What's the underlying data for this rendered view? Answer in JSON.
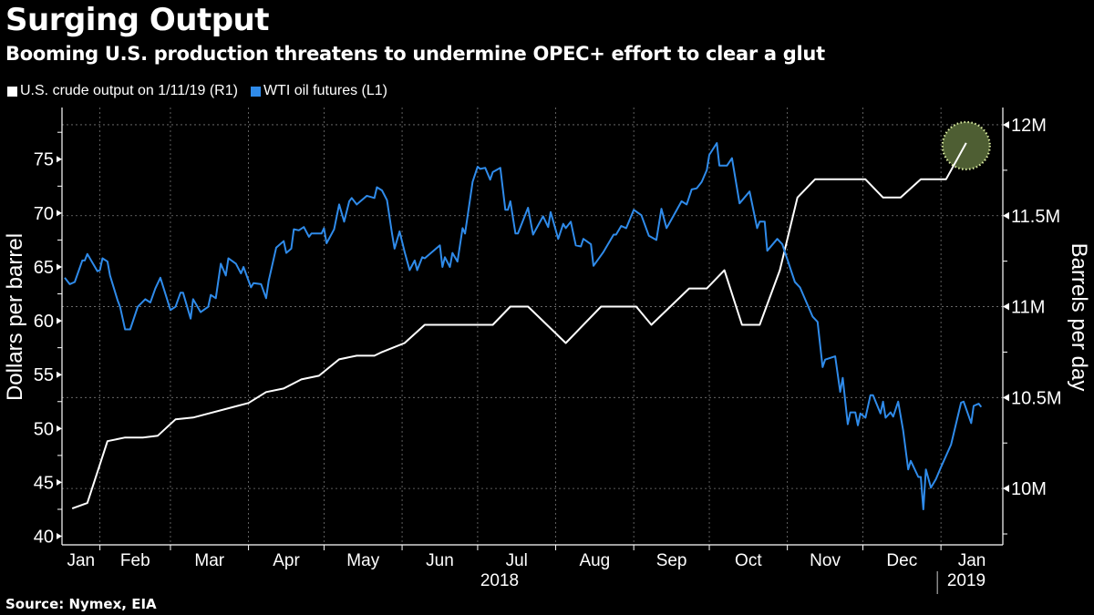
{
  "header": {
    "title": "Surging Output",
    "subtitle": "Booming U.S. production threatens to undermine OPEC+ effort to clear a glut"
  },
  "footer": {
    "source": "Source: Nymex, EIA"
  },
  "colors": {
    "background": "#000000",
    "wti": "#2f8bea",
    "output": "#ffffff",
    "highlight_fill": "#4e5e33",
    "highlight_border": "#d9eaa0",
    "grid": "#777777"
  },
  "chart_data": {
    "type": "line",
    "title": "Surging Output",
    "subtitle": "Booming U.S. production threatens to undermine OPEC+ effort to clear a glut",
    "legend_placement": "top-left",
    "grid": true,
    "x_axis": {
      "type": "date",
      "range": [
        "2018-01-01",
        "2019-01-24"
      ],
      "tick_labels": [
        {
          "date": "2018-01-01",
          "label": "Jan"
        },
        {
          "date": "2018-02-01",
          "label": "Feb"
        },
        {
          "date": "2018-03-01",
          "label": "Mar"
        },
        {
          "date": "2018-04-01",
          "label": "Apr"
        },
        {
          "date": "2018-05-01",
          "label": "May"
        },
        {
          "date": "2018-06-01",
          "label": "Jun"
        },
        {
          "date": "2018-07-01",
          "label": "Jul"
        },
        {
          "date": "2018-08-01",
          "label": "Aug"
        },
        {
          "date": "2018-09-01",
          "label": "Sep"
        },
        {
          "date": "2018-10-01",
          "label": "Oct"
        },
        {
          "date": "2018-11-01",
          "label": "Nov"
        },
        {
          "date": "2018-12-01",
          "label": "Dec"
        },
        {
          "date": "2019-01-01",
          "label": "Jan"
        }
      ],
      "year_labels": [
        {
          "date": "2018-07-01",
          "label": "2018"
        },
        {
          "date": "2019-01-01",
          "label": "2019"
        }
      ]
    },
    "y_left": {
      "label": "Dollars per barrel",
      "range": [
        39.2,
        79.8
      ],
      "ticks": [
        40,
        45,
        50,
        55,
        60,
        65,
        70,
        75
      ],
      "tick_labels": [
        "40",
        "45",
        "50",
        "55",
        "60",
        "65",
        "70",
        "75"
      ]
    },
    "y_right": {
      "label": "Barrels per day",
      "range": [
        9.69,
        12.095
      ],
      "unit": "million",
      "ticks": [
        10,
        10.5,
        11,
        11.5,
        12
      ],
      "tick_labels": [
        "10M",
        "10.5M",
        "11M",
        "11.5M",
        "12M"
      ]
    },
    "series": [
      {
        "name": "U.S. crude output on 1/11/19 (R1)",
        "axis": "right",
        "color": "#ffffff",
        "highlight_last_point": true,
        "points": [
          [
            "2018-01-21",
            9.89
          ],
          [
            "2018-01-27",
            9.92
          ],
          [
            "2018-02-04",
            10.26
          ],
          [
            "2018-02-11",
            10.28
          ],
          [
            "2018-02-18",
            10.28
          ],
          [
            "2018-02-24",
            10.29
          ],
          [
            "2018-03-03",
            10.38
          ],
          [
            "2018-03-10",
            10.39
          ],
          [
            "2018-04-01",
            10.47
          ],
          [
            "2018-04-08",
            10.53
          ],
          [
            "2018-04-15",
            10.55
          ],
          [
            "2018-04-22",
            10.6
          ],
          [
            "2018-04-29",
            10.62
          ],
          [
            "2018-05-07",
            10.71
          ],
          [
            "2018-05-14",
            10.73
          ],
          [
            "2018-05-21",
            10.73
          ],
          [
            "2018-05-24",
            10.75
          ],
          [
            "2018-06-02",
            10.8
          ],
          [
            "2018-06-10",
            10.9
          ],
          [
            "2018-07-07",
            10.9
          ],
          [
            "2018-07-14",
            11.0
          ],
          [
            "2018-07-21",
            11.0
          ],
          [
            "2018-08-05",
            10.8
          ],
          [
            "2018-08-19",
            11.0
          ],
          [
            "2018-09-02",
            11.0
          ],
          [
            "2018-09-08",
            10.9
          ],
          [
            "2018-09-23",
            11.1
          ],
          [
            "2018-09-30",
            11.1
          ],
          [
            "2018-10-07",
            11.2
          ],
          [
            "2018-10-14",
            10.9
          ],
          [
            "2018-10-21",
            10.9
          ],
          [
            "2018-10-29",
            11.2
          ],
          [
            "2018-11-05",
            11.6
          ],
          [
            "2018-11-12",
            11.7
          ],
          [
            "2018-12-02",
            11.7
          ],
          [
            "2018-12-09",
            11.6
          ],
          [
            "2018-12-16",
            11.6
          ],
          [
            "2018-12-24",
            11.7
          ],
          [
            "2019-01-03",
            11.7
          ],
          [
            "2019-01-11",
            11.9
          ]
        ]
      },
      {
        "name": "WTI oil futures (L1)",
        "axis": "left",
        "color": "#2f8bea",
        "points": [
          [
            "2018-01-18",
            64.0
          ],
          [
            "2018-01-20",
            63.4
          ],
          [
            "2018-01-22",
            63.6
          ],
          [
            "2018-01-25",
            65.6
          ],
          [
            "2018-01-26",
            65.6
          ],
          [
            "2018-01-27",
            66.2
          ],
          [
            "2018-01-31",
            64.6
          ],
          [
            "2018-02-01",
            64.7
          ],
          [
            "2018-02-02",
            65.8
          ],
          [
            "2018-02-04",
            65.5
          ],
          [
            "2018-02-05",
            64.2
          ],
          [
            "2018-02-08",
            61.9
          ],
          [
            "2018-02-09",
            61.3
          ],
          [
            "2018-02-11",
            59.2
          ],
          [
            "2018-02-13",
            59.2
          ],
          [
            "2018-02-16",
            61.3
          ],
          [
            "2018-02-19",
            62.0
          ],
          [
            "2018-02-21",
            61.7
          ],
          [
            "2018-02-23",
            63.0
          ],
          [
            "2018-02-25",
            64.0
          ],
          [
            "2018-03-01",
            61.0
          ],
          [
            "2018-03-03",
            61.3
          ],
          [
            "2018-03-05",
            62.6
          ],
          [
            "2018-03-06",
            62.6
          ],
          [
            "2018-03-09",
            60.2
          ],
          [
            "2018-03-10",
            62.0
          ],
          [
            "2018-03-13",
            60.8
          ],
          [
            "2018-03-16",
            61.3
          ],
          [
            "2018-03-17",
            62.4
          ],
          [
            "2018-03-19",
            62.1
          ],
          [
            "2018-03-21",
            65.3
          ],
          [
            "2018-03-23",
            64.2
          ],
          [
            "2018-03-24",
            65.8
          ],
          [
            "2018-03-27",
            65.3
          ],
          [
            "2018-03-29",
            64.4
          ],
          [
            "2018-03-30",
            65.0
          ],
          [
            "2018-04-02",
            63.1
          ],
          [
            "2018-04-03",
            63.5
          ],
          [
            "2018-04-06",
            63.4
          ],
          [
            "2018-04-08",
            62.1
          ],
          [
            "2018-04-09",
            63.7
          ],
          [
            "2018-04-12",
            66.8
          ],
          [
            "2018-04-15",
            67.4
          ],
          [
            "2018-04-16",
            66.3
          ],
          [
            "2018-04-18",
            66.7
          ],
          [
            "2018-04-19",
            68.5
          ],
          [
            "2018-04-21",
            68.4
          ],
          [
            "2018-04-23",
            68.7
          ],
          [
            "2018-04-25",
            67.8
          ],
          [
            "2018-04-26",
            68.1
          ],
          [
            "2018-04-30",
            68.1
          ],
          [
            "2018-05-01",
            68.6
          ],
          [
            "2018-05-02",
            67.2
          ],
          [
            "2018-05-05",
            68.5
          ],
          [
            "2018-05-07",
            70.8
          ],
          [
            "2018-05-09",
            69.2
          ],
          [
            "2018-05-11",
            71.1
          ],
          [
            "2018-05-12",
            71.4
          ],
          [
            "2018-05-14",
            70.8
          ],
          [
            "2018-05-18",
            71.6
          ],
          [
            "2018-05-21",
            71.4
          ],
          [
            "2018-05-22",
            72.4
          ],
          [
            "2018-05-24",
            72.1
          ],
          [
            "2018-05-26",
            71.2
          ],
          [
            "2018-05-28",
            68.1
          ],
          [
            "2018-05-29",
            66.7
          ],
          [
            "2018-05-31",
            68.3
          ],
          [
            "2018-06-02",
            66.4
          ],
          [
            "2018-06-04",
            64.7
          ],
          [
            "2018-06-06",
            65.6
          ],
          [
            "2018-06-07",
            64.7
          ],
          [
            "2018-06-09",
            65.9
          ],
          [
            "2018-06-10",
            65.8
          ],
          [
            "2018-06-16",
            67.0
          ],
          [
            "2018-06-17",
            65.0
          ],
          [
            "2018-06-18",
            65.9
          ],
          [
            "2018-06-20",
            65.0
          ],
          [
            "2018-06-21",
            66.3
          ],
          [
            "2018-06-23",
            65.5
          ],
          [
            "2018-06-25",
            68.6
          ],
          [
            "2018-06-26",
            68.1
          ],
          [
            "2018-06-29",
            72.9
          ],
          [
            "2018-07-01",
            74.3
          ],
          [
            "2018-07-02",
            74.1
          ],
          [
            "2018-07-04",
            74.2
          ],
          [
            "2018-07-06",
            73.1
          ],
          [
            "2018-07-07",
            73.8
          ],
          [
            "2018-07-10",
            74.2
          ],
          [
            "2018-07-12",
            70.3
          ],
          [
            "2018-07-13",
            70.3
          ],
          [
            "2018-07-14",
            71.1
          ],
          [
            "2018-07-16",
            68.1
          ],
          [
            "2018-07-17",
            68.1
          ],
          [
            "2018-07-21",
            70.5
          ],
          [
            "2018-07-23",
            68.0
          ],
          [
            "2018-07-27",
            69.7
          ],
          [
            "2018-07-29",
            68.7
          ],
          [
            "2018-07-30",
            70.1
          ],
          [
            "2018-08-02",
            67.6
          ],
          [
            "2018-08-04",
            69.0
          ],
          [
            "2018-08-05",
            68.6
          ],
          [
            "2018-08-07",
            69.2
          ],
          [
            "2018-08-09",
            67.0
          ],
          [
            "2018-08-11",
            66.9
          ],
          [
            "2018-08-12",
            67.6
          ],
          [
            "2018-08-15",
            67.1
          ],
          [
            "2018-08-16",
            65.1
          ],
          [
            "2018-08-20",
            66.4
          ],
          [
            "2018-08-24",
            68.0
          ],
          [
            "2018-08-25",
            68.0
          ],
          [
            "2018-08-27",
            68.8
          ],
          [
            "2018-08-29",
            68.6
          ],
          [
            "2018-09-01",
            70.3
          ],
          [
            "2018-09-04",
            69.8
          ],
          [
            "2018-09-07",
            67.9
          ],
          [
            "2018-09-10",
            67.5
          ],
          [
            "2018-09-12",
            70.4
          ],
          [
            "2018-09-14",
            68.6
          ],
          [
            "2018-09-15",
            69.0
          ],
          [
            "2018-09-20",
            71.1
          ],
          [
            "2018-09-22",
            70.8
          ],
          [
            "2018-09-24",
            72.2
          ],
          [
            "2018-09-26",
            72.3
          ],
          [
            "2018-09-28",
            72.9
          ],
          [
            "2018-09-30",
            74.0
          ],
          [
            "2018-10-01",
            75.4
          ],
          [
            "2018-10-04",
            76.5
          ],
          [
            "2018-10-05",
            74.4
          ],
          [
            "2018-10-08",
            74.4
          ],
          [
            "2018-10-10",
            75.1
          ],
          [
            "2018-10-13",
            70.9
          ],
          [
            "2018-10-17",
            72.0
          ],
          [
            "2018-10-20",
            68.6
          ],
          [
            "2018-10-21",
            69.2
          ],
          [
            "2018-10-23",
            69.2
          ],
          [
            "2018-10-24",
            66.5
          ],
          [
            "2018-10-28",
            67.6
          ],
          [
            "2018-10-30",
            67.1
          ],
          [
            "2018-11-04",
            63.6
          ],
          [
            "2018-11-06",
            63.1
          ],
          [
            "2018-11-11",
            60.4
          ],
          [
            "2018-11-13",
            59.9
          ],
          [
            "2018-11-15",
            55.7
          ],
          [
            "2018-11-16",
            56.4
          ],
          [
            "2018-11-20",
            56.7
          ],
          [
            "2018-11-22",
            53.4
          ],
          [
            "2018-11-23",
            54.7
          ],
          [
            "2018-11-25",
            50.4
          ],
          [
            "2018-11-26",
            51.5
          ],
          [
            "2018-11-28",
            51.5
          ],
          [
            "2018-11-29",
            50.3
          ],
          [
            "2018-11-30",
            51.4
          ],
          [
            "2018-12-02",
            51.0
          ],
          [
            "2018-12-04",
            53.1
          ],
          [
            "2018-12-05",
            53.1
          ],
          [
            "2018-12-08",
            51.4
          ],
          [
            "2018-12-09",
            52.5
          ],
          [
            "2018-12-10",
            51.0
          ],
          [
            "2018-12-12",
            51.5
          ],
          [
            "2018-12-13",
            51.1
          ],
          [
            "2018-12-15",
            52.5
          ],
          [
            "2018-12-17",
            49.8
          ],
          [
            "2018-12-19",
            46.2
          ],
          [
            "2018-12-20",
            47.0
          ],
          [
            "2018-12-23",
            45.5
          ],
          [
            "2018-12-24",
            45.5
          ],
          [
            "2018-12-25",
            42.5
          ],
          [
            "2018-12-26",
            46.2
          ],
          [
            "2018-12-28",
            44.5
          ],
          [
            "2018-12-30",
            45.3
          ],
          [
            "2019-01-01",
            46.4
          ],
          [
            "2019-01-05",
            48.5
          ],
          [
            "2019-01-09",
            52.4
          ],
          [
            "2019-01-10",
            52.5
          ],
          [
            "2019-01-13",
            50.5
          ],
          [
            "2019-01-14",
            52.1
          ],
          [
            "2019-01-16",
            52.3
          ],
          [
            "2019-01-17",
            52.0
          ]
        ]
      }
    ]
  }
}
